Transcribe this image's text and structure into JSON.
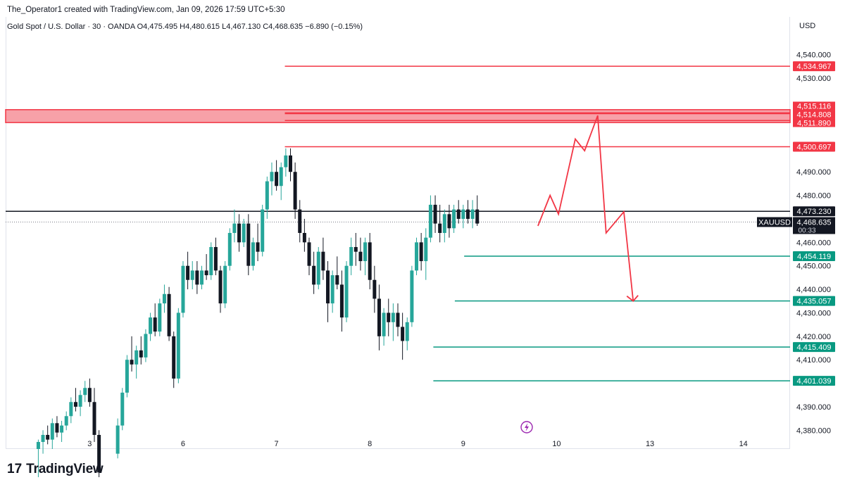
{
  "header": {
    "caption": "The_Operator1 created with TradingView.com, Jan 09, 2026 17:59 UTC+5:30"
  },
  "legend": {
    "text": "Gold Spot / U.S. Dollar · 30 · OANDA  O4,475.495  H4,480.615  L4,467.130  C4,468.635  −6.890 (−0.15%)"
  },
  "currency": "USD",
  "brand": {
    "mark": "17",
    "name": "TradingView"
  },
  "icons": {
    "replay": "lightning-icon"
  },
  "colors": {
    "up": "#26a69a",
    "down": "#131722",
    "resistance": "#f23645",
    "support": "#089981",
    "price": "#131722"
  },
  "chart_data": {
    "type": "candlestick",
    "symbol": "XAUUSD",
    "countdown": "00:33",
    "ylim": [
      4372,
      4556
    ],
    "y_ticks": [
      "4,380.000",
      "4,390.000",
      "4,410.000",
      "4,420.000",
      "4,430.000",
      "4,440.000",
      "4,450.000",
      "4,460.000",
      "4,480.000",
      "4,490.000",
      "4,530.000",
      "4,540.000"
    ],
    "x_ticks": [
      {
        "label": "3",
        "x": -2.5
      },
      {
        "label": "6",
        "x": -1.5
      },
      {
        "label": "7",
        "x": -0.5
      },
      {
        "label": "8",
        "x": 0.5
      },
      {
        "label": "9",
        "x": 1.5
      },
      {
        "label": "10",
        "x": 2.5
      },
      {
        "label": "13",
        "x": 3.5
      },
      {
        "label": "14",
        "x": 4.5
      }
    ],
    "x_range": [
      -3.4,
      5.0
    ],
    "current_price": "4,468.635",
    "levels": [
      {
        "value": 4534.967,
        "label": "4,534.967",
        "kind": "resistance",
        "from": -0.41
      },
      {
        "value": 4515.116,
        "label": "4,515.116",
        "kind": "resistance",
        "from": -0.41
      },
      {
        "value": 4514.808,
        "label": "4,514.808",
        "kind": "resistance",
        "from": -0.41
      },
      {
        "value": 4511.89,
        "label": "4,511.890",
        "kind": "resistance",
        "from": -0.41
      },
      {
        "value": 4500.697,
        "label": "4,500.697",
        "kind": "resistance",
        "from": -0.41
      },
      {
        "value": 4473.23,
        "label": "4,473.230",
        "kind": "price",
        "from": -3.4
      },
      {
        "value": 4454.119,
        "label": "4,454.119",
        "kind": "support",
        "from": 1.51
      },
      {
        "value": 4435.057,
        "label": "4,435.057",
        "kind": "support",
        "from": 1.41
      },
      {
        "value": 4415.409,
        "label": "4,415.409",
        "kind": "support",
        "from": 1.18
      },
      {
        "value": 4401.039,
        "label": "4,401.039",
        "kind": "support",
        "from": 1.18
      }
    ],
    "zone": {
      "low": 4511.0,
      "high": 4516.5
    },
    "projection": [
      {
        "x": 2.3,
        "y": 4467
      },
      {
        "x": 2.43,
        "y": 4480
      },
      {
        "x": 2.52,
        "y": 4472
      },
      {
        "x": 2.7,
        "y": 4504
      },
      {
        "x": 2.8,
        "y": 4499
      },
      {
        "x": 2.94,
        "y": 4514
      },
      {
        "x": 3.03,
        "y": 4464
      },
      {
        "x": 3.22,
        "y": 4473
      },
      {
        "x": 3.32,
        "y": 4435
      }
    ],
    "series": [
      {
        "x": -3.05,
        "o": 4372,
        "h": 4376,
        "l": 4360,
        "c": 4375
      },
      {
        "x": -3.0,
        "o": 4375,
        "h": 4380,
        "l": 4370,
        "c": 4378
      },
      {
        "x": -2.95,
        "o": 4378,
        "h": 4382,
        "l": 4374,
        "c": 4376
      },
      {
        "x": -2.9,
        "o": 4376,
        "h": 4385,
        "l": 4372,
        "c": 4383
      },
      {
        "x": -2.85,
        "o": 4383,
        "h": 4386,
        "l": 4377,
        "c": 4379
      },
      {
        "x": -2.8,
        "o": 4379,
        "h": 4384,
        "l": 4375,
        "c": 4382
      },
      {
        "x": -2.75,
        "o": 4382,
        "h": 4388,
        "l": 4380,
        "c": 4386
      },
      {
        "x": -2.7,
        "o": 4386,
        "h": 4394,
        "l": 4383,
        "c": 4392
      },
      {
        "x": -2.65,
        "o": 4392,
        "h": 4398,
        "l": 4388,
        "c": 4390
      },
      {
        "x": -2.6,
        "o": 4390,
        "h": 4397,
        "l": 4386,
        "c": 4395
      },
      {
        "x": -2.55,
        "o": 4395,
        "h": 4401,
        "l": 4392,
        "c": 4398
      },
      {
        "x": -2.5,
        "o": 4398,
        "h": 4402,
        "l": 4390,
        "c": 4392
      },
      {
        "x": -2.45,
        "o": 4392,
        "h": 4398,
        "l": 4375,
        "c": 4378
      },
      {
        "x": -2.4,
        "o": 4378,
        "h": 4380,
        "l": 4360,
        "c": 4362
      },
      {
        "x": -2.2,
        "o": 4370,
        "h": 4385,
        "l": 4368,
        "c": 4382
      },
      {
        "x": -2.15,
        "o": 4382,
        "h": 4398,
        "l": 4380,
        "c": 4396
      },
      {
        "x": -2.1,
        "o": 4396,
        "h": 4412,
        "l": 4394,
        "c": 4410
      },
      {
        "x": -2.05,
        "o": 4410,
        "h": 4420,
        "l": 4405,
        "c": 4408
      },
      {
        "x": -2.0,
        "o": 4408,
        "h": 4416,
        "l": 4402,
        "c": 4414
      },
      {
        "x": -1.95,
        "o": 4414,
        "h": 4420,
        "l": 4408,
        "c": 4411
      },
      {
        "x": -1.9,
        "o": 4411,
        "h": 4423,
        "l": 4409,
        "c": 4421
      },
      {
        "x": -1.85,
        "o": 4421,
        "h": 4430,
        "l": 4418,
        "c": 4428
      },
      {
        "x": -1.8,
        "o": 4428,
        "h": 4434,
        "l": 4420,
        "c": 4422
      },
      {
        "x": -1.75,
        "o": 4422,
        "h": 4436,
        "l": 4420,
        "c": 4434
      },
      {
        "x": -1.7,
        "o": 4434,
        "h": 4442,
        "l": 4430,
        "c": 4438
      },
      {
        "x": -1.65,
        "o": 4438,
        "h": 4441,
        "l": 4418,
        "c": 4420
      },
      {
        "x": -1.6,
        "o": 4420,
        "h": 4422,
        "l": 4398,
        "c": 4402
      },
      {
        "x": -1.55,
        "o": 4402,
        "h": 4432,
        "l": 4400,
        "c": 4430
      },
      {
        "x": -1.5,
        "o": 4430,
        "h": 4452,
        "l": 4428,
        "c": 4450
      },
      {
        "x": -1.45,
        "o": 4450,
        "h": 4456,
        "l": 4440,
        "c": 4444
      },
      {
        "x": -1.4,
        "o": 4444,
        "h": 4452,
        "l": 4440,
        "c": 4448
      },
      {
        "x": -1.35,
        "o": 4448,
        "h": 4452,
        "l": 4438,
        "c": 4442
      },
      {
        "x": -1.3,
        "o": 4442,
        "h": 4450,
        "l": 4440,
        "c": 4448
      },
      {
        "x": -1.25,
        "o": 4448,
        "h": 4455,
        "l": 4444,
        "c": 4446
      },
      {
        "x": -1.2,
        "o": 4446,
        "h": 4460,
        "l": 4444,
        "c": 4458
      },
      {
        "x": -1.15,
        "o": 4458,
        "h": 4462,
        "l": 4446,
        "c": 4448
      },
      {
        "x": -1.1,
        "o": 4448,
        "h": 4450,
        "l": 4430,
        "c": 4434
      },
      {
        "x": -1.05,
        "o": 4434,
        "h": 4452,
        "l": 4432,
        "c": 4450
      },
      {
        "x": -1.0,
        "o": 4450,
        "h": 4466,
        "l": 4448,
        "c": 4464
      },
      {
        "x": -0.95,
        "o": 4464,
        "h": 4474,
        "l": 4460,
        "c": 4468
      },
      {
        "x": -0.9,
        "o": 4468,
        "h": 4472,
        "l": 4456,
        "c": 4460
      },
      {
        "x": -0.85,
        "o": 4460,
        "h": 4470,
        "l": 4458,
        "c": 4468
      },
      {
        "x": -0.8,
        "o": 4468,
        "h": 4472,
        "l": 4446,
        "c": 4450
      },
      {
        "x": -0.75,
        "o": 4450,
        "h": 4462,
        "l": 4448,
        "c": 4460
      },
      {
        "x": -0.7,
        "o": 4460,
        "h": 4468,
        "l": 4452,
        "c": 4456
      },
      {
        "x": -0.65,
        "o": 4456,
        "h": 4476,
        "l": 4454,
        "c": 4474
      },
      {
        "x": -0.6,
        "o": 4474,
        "h": 4488,
        "l": 4470,
        "c": 4486
      },
      {
        "x": -0.55,
        "o": 4486,
        "h": 4494,
        "l": 4480,
        "c": 4490
      },
      {
        "x": -0.5,
        "o": 4490,
        "h": 4495,
        "l": 4482,
        "c": 4484
      },
      {
        "x": -0.45,
        "o": 4484,
        "h": 4494,
        "l": 4478,
        "c": 4492
      },
      {
        "x": -0.4,
        "o": 4492,
        "h": 4500,
        "l": 4488,
        "c": 4497
      },
      {
        "x": -0.35,
        "o": 4497,
        "h": 4500,
        "l": 4486,
        "c": 4490
      },
      {
        "x": -0.3,
        "o": 4490,
        "h": 4494,
        "l": 4470,
        "c": 4474
      },
      {
        "x": -0.25,
        "o": 4474,
        "h": 4478,
        "l": 4460,
        "c": 4464
      },
      {
        "x": -0.2,
        "o": 4464,
        "h": 4470,
        "l": 4456,
        "c": 4460
      },
      {
        "x": -0.15,
        "o": 4460,
        "h": 4462,
        "l": 4446,
        "c": 4450
      },
      {
        "x": -0.1,
        "o": 4450,
        "h": 4456,
        "l": 4438,
        "c": 4442
      },
      {
        "x": -0.05,
        "o": 4442,
        "h": 4458,
        "l": 4440,
        "c": 4456
      },
      {
        "x": 0.0,
        "o": 4456,
        "h": 4462,
        "l": 4444,
        "c": 4448
      },
      {
        "x": 0.05,
        "o": 4448,
        "h": 4452,
        "l": 4426,
        "c": 4434
      },
      {
        "x": 0.1,
        "o": 4434,
        "h": 4448,
        "l": 4430,
        "c": 4446
      },
      {
        "x": 0.15,
        "o": 4446,
        "h": 4454,
        "l": 4440,
        "c": 4442
      },
      {
        "x": 0.2,
        "o": 4442,
        "h": 4448,
        "l": 4422,
        "c": 4428
      },
      {
        "x": 0.25,
        "o": 4428,
        "h": 4452,
        "l": 4426,
        "c": 4450
      },
      {
        "x": 0.3,
        "o": 4450,
        "h": 4462,
        "l": 4446,
        "c": 4458
      },
      {
        "x": 0.35,
        "o": 4458,
        "h": 4464,
        "l": 4450,
        "c": 4456
      },
      {
        "x": 0.4,
        "o": 4456,
        "h": 4462,
        "l": 4448,
        "c": 4452
      },
      {
        "x": 0.45,
        "o": 4452,
        "h": 4462,
        "l": 4446,
        "c": 4460
      },
      {
        "x": 0.5,
        "o": 4460,
        "h": 4464,
        "l": 4440,
        "c": 4444
      },
      {
        "x": 0.55,
        "o": 4444,
        "h": 4450,
        "l": 4430,
        "c": 4436
      },
      {
        "x": 0.6,
        "o": 4436,
        "h": 4442,
        "l": 4414,
        "c": 4420
      },
      {
        "x": 0.65,
        "o": 4420,
        "h": 4432,
        "l": 4416,
        "c": 4430
      },
      {
        "x": 0.7,
        "o": 4430,
        "h": 4436,
        "l": 4420,
        "c": 4426
      },
      {
        "x": 0.75,
        "o": 4426,
        "h": 4434,
        "l": 4418,
        "c": 4430
      },
      {
        "x": 0.8,
        "o": 4430,
        "h": 4434,
        "l": 4420,
        "c": 4424
      },
      {
        "x": 0.85,
        "o": 4424,
        "h": 4430,
        "l": 4410,
        "c": 4418
      },
      {
        "x": 0.9,
        "o": 4418,
        "h": 4428,
        "l": 4414,
        "c": 4426
      },
      {
        "x": 0.95,
        "o": 4426,
        "h": 4450,
        "l": 4424,
        "c": 4448
      },
      {
        "x": 1.0,
        "o": 4448,
        "h": 4462,
        "l": 4446,
        "c": 4460
      },
      {
        "x": 1.05,
        "o": 4460,
        "h": 4464,
        "l": 4448,
        "c": 4452
      },
      {
        "x": 1.1,
        "o": 4452,
        "h": 4466,
        "l": 4444,
        "c": 4462
      },
      {
        "x": 1.15,
        "o": 4462,
        "h": 4480,
        "l": 4460,
        "c": 4476
      },
      {
        "x": 1.2,
        "o": 4476,
        "h": 4480,
        "l": 4464,
        "c": 4468
      },
      {
        "x": 1.25,
        "o": 4468,
        "h": 4476,
        "l": 4460,
        "c": 4464
      },
      {
        "x": 1.3,
        "o": 4464,
        "h": 4474,
        "l": 4460,
        "c": 4472
      },
      {
        "x": 1.35,
        "o": 4472,
        "h": 4476,
        "l": 4462,
        "c": 4466
      },
      {
        "x": 1.4,
        "o": 4466,
        "h": 4476,
        "l": 4464,
        "c": 4474
      },
      {
        "x": 1.45,
        "o": 4474,
        "h": 4478,
        "l": 4468,
        "c": 4470
      },
      {
        "x": 1.5,
        "o": 4470,
        "h": 4476,
        "l": 4466,
        "c": 4474
      },
      {
        "x": 1.55,
        "o": 4474,
        "h": 4478,
        "l": 4468,
        "c": 4470
      },
      {
        "x": 1.6,
        "o": 4470,
        "h": 4478,
        "l": 4466,
        "c": 4474
      },
      {
        "x": 1.65,
        "o": 4474,
        "h": 4480,
        "l": 4467,
        "c": 4468
      }
    ]
  }
}
